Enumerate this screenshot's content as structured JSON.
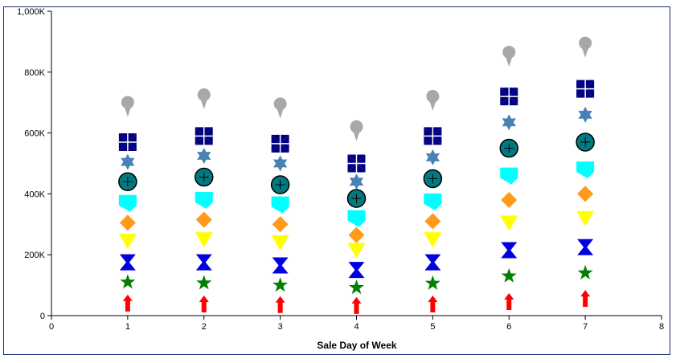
{
  "chart_data": {
    "type": "scatter",
    "title": "",
    "xlabel": "Sale Day of Week",
    "ylabel": "",
    "xlim": [
      0,
      8
    ],
    "ylim": [
      0,
      1000000
    ],
    "x_ticks": [
      "0",
      "1",
      "2",
      "3",
      "4",
      "5",
      "6",
      "7",
      "8"
    ],
    "y_ticks": [
      "0",
      "200K",
      "400K",
      "600K",
      "800K",
      "1,000K"
    ],
    "y_tick_values": [
      0,
      200000,
      400000,
      600000,
      800000,
      1000000
    ],
    "grid": false,
    "legend": "none",
    "x": [
      1,
      2,
      3,
      4,
      5,
      6,
      7
    ],
    "series": [
      {
        "marker": "arrow",
        "color": "#ff0000",
        "values": [
          40000,
          37000,
          35000,
          32000,
          37000,
          45000,
          55000
        ]
      },
      {
        "marker": "star",
        "color": "#008000",
        "values": [
          110000,
          107000,
          100000,
          92000,
          106000,
          130000,
          140000
        ]
      },
      {
        "marker": "hourglass",
        "color": "#0000e0",
        "values": [
          175000,
          175000,
          165000,
          150000,
          175000,
          215000,
          225000
        ]
      },
      {
        "marker": "triangle-down",
        "color": "#ffff00",
        "values": [
          245000,
          250000,
          240000,
          215000,
          250000,
          305000,
          320000
        ]
      },
      {
        "marker": "diamond",
        "color": "#ff9a1a",
        "values": [
          305000,
          315000,
          300000,
          265000,
          310000,
          380000,
          400000
        ]
      },
      {
        "marker": "pentagon",
        "color": "#00ffff",
        "values": [
          370000,
          380000,
          365000,
          320000,
          375000,
          460000,
          480000
        ]
      },
      {
        "marker": "circle-plus",
        "color": "#007a80",
        "values": [
          440000,
          455000,
          430000,
          385000,
          450000,
          550000,
          570000
        ]
      },
      {
        "marker": "hexagram",
        "color": "#4682b4",
        "values": [
          505000,
          525000,
          500000,
          440000,
          520000,
          635000,
          660000
        ]
      },
      {
        "marker": "pinwheel",
        "color": "#000080",
        "values": [
          570000,
          590000,
          565000,
          500000,
          590000,
          720000,
          745000
        ]
      },
      {
        "marker": "pin",
        "color": "#a8a8a8",
        "values": [
          690000,
          715000,
          685000,
          610000,
          710000,
          855000,
          885000
        ]
      }
    ]
  }
}
